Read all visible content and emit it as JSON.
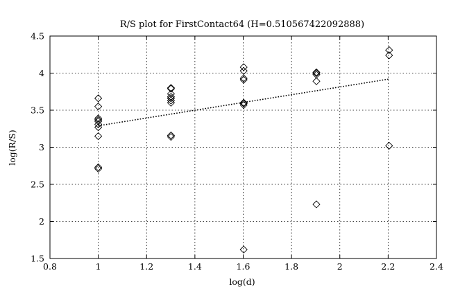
{
  "chart_data": {
    "type": "scatter",
    "title": "R/S plot for FirstContact64 (H=0.510567422092888)",
    "xlabel": "log(d)",
    "ylabel": "log(R/S)",
    "xlim": [
      0.8,
      2.4
    ],
    "ylim": [
      1.5,
      4.5
    ],
    "xticks": [
      0.8,
      1,
      1.2,
      1.4,
      1.6,
      1.8,
      2,
      2.2,
      2.4
    ],
    "yticks": [
      1.5,
      2,
      2.5,
      3,
      3.5,
      4,
      4.5
    ],
    "xtick_labels": [
      "0.8",
      "1",
      "1.2",
      "1.4",
      "1.6",
      "1.8",
      "2",
      "2.2",
      "2.4"
    ],
    "ytick_labels": [
      "1.5",
      "2",
      "2.5",
      "3",
      "3.5",
      "4",
      "4.5"
    ],
    "grid": true,
    "legend": "none",
    "marker": "diamond",
    "series": [
      {
        "values": [
          [
            1.0,
            3.66
          ],
          [
            1.0,
            3.55
          ],
          [
            1.0,
            3.39
          ],
          [
            1.0,
            3.37
          ],
          [
            1.0,
            3.35
          ],
          [
            1.0,
            3.31
          ],
          [
            1.0,
            3.27
          ],
          [
            1.0,
            3.15
          ],
          [
            1.0,
            2.73
          ],
          [
            1.0,
            2.71
          ],
          [
            1.301,
            3.8
          ],
          [
            1.301,
            3.79
          ],
          [
            1.301,
            3.72
          ],
          [
            1.301,
            3.68
          ],
          [
            1.301,
            3.66
          ],
          [
            1.301,
            3.63
          ],
          [
            1.301,
            3.6
          ],
          [
            1.301,
            3.16
          ],
          [
            1.301,
            3.14
          ],
          [
            1.602,
            4.08
          ],
          [
            1.602,
            4.03
          ],
          [
            1.602,
            3.93
          ],
          [
            1.602,
            3.91
          ],
          [
            1.602,
            3.6
          ],
          [
            1.602,
            3.59
          ],
          [
            1.602,
            3.57
          ],
          [
            1.602,
            1.62
          ],
          [
            1.903,
            4.01
          ],
          [
            1.903,
            4.0
          ],
          [
            1.903,
            3.98
          ],
          [
            1.903,
            3.89
          ],
          [
            1.903,
            2.23
          ],
          [
            2.204,
            4.31
          ],
          [
            2.204,
            4.24
          ],
          [
            2.204,
            3.02
          ]
        ]
      }
    ],
    "fit_line": {
      "style": "dotted",
      "points": [
        [
          1.0,
          3.29
        ],
        [
          2.204,
          3.92
        ]
      ]
    }
  }
}
